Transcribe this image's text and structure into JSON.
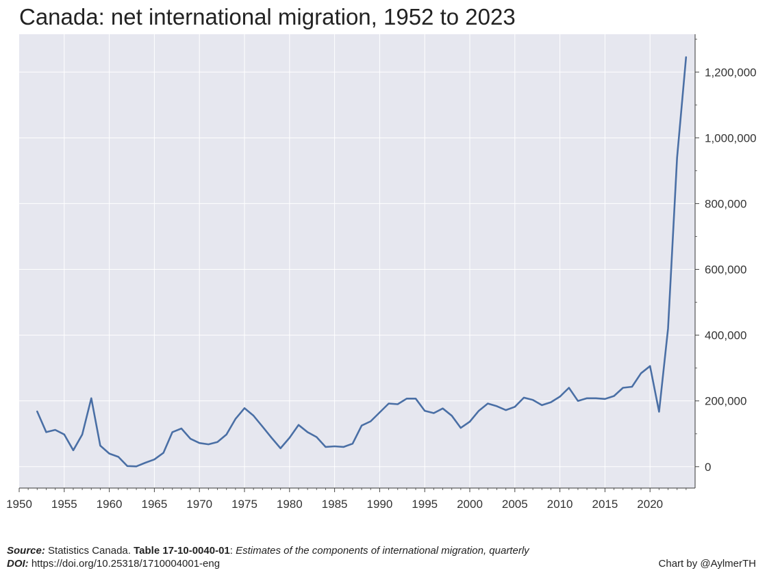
{
  "title": "Canada: net international migration, 1952 to 2023",
  "footer": {
    "source_label": "Source:",
    "source_org": "Statistics Canada.",
    "table_id": "Table 17-10-0040-01",
    "table_sep": ":",
    "table_desc": "Estimates of the components of international migration, quarterly",
    "doi_label": "DOI:",
    "doi_value": "https://doi.org/10.25318/1710004001-eng",
    "credit": "Chart by @AylmerTH"
  },
  "chart_data": {
    "type": "line",
    "title": "Canada: net international migration, 1952 to 2023",
    "xlabel": "",
    "ylabel": "",
    "xlim": [
      1950,
      2025
    ],
    "ylim": [
      -65000,
      1315000
    ],
    "xticks": [
      1950,
      1955,
      1960,
      1965,
      1970,
      1975,
      1980,
      1985,
      1990,
      1995,
      2000,
      2005,
      2010,
      2015,
      2020
    ],
    "yticks": [
      0,
      200000,
      400000,
      600000,
      800000,
      1000000,
      1200000
    ],
    "ytick_labels": [
      "0",
      "200,000",
      "400,000",
      "600,000",
      "800,000",
      "1,000,000",
      "1,200,000"
    ],
    "y_axis_position": "right",
    "grid": true,
    "colors": {
      "plot_bg": "#e6e7ef",
      "grid": "#ffffff",
      "line": "#4a6fa5"
    },
    "series": [
      {
        "x": [
          1952,
          1953,
          1954,
          1955,
          1956,
          1957,
          1958,
          1959,
          1960,
          1961,
          1962,
          1963,
          1964,
          1965,
          1966,
          1967,
          1968,
          1969,
          1970,
          1971,
          1972,
          1973,
          1974,
          1975,
          1976,
          1977,
          1978,
          1979,
          1980,
          1981,
          1982,
          1983,
          1984,
          1985,
          1986,
          1987,
          1988,
          1989,
          1990,
          1991,
          1992,
          1993,
          1994,
          1995,
          1996,
          1997,
          1998,
          1999,
          2000,
          2001,
          2002,
          2003,
          2004,
          2005,
          2006,
          2007,
          2008,
          2009,
          2010,
          2011,
          2012,
          2013,
          2014,
          2015,
          2016,
          2017,
          2018,
          2019,
          2020,
          2021,
          2022,
          2023,
          2024
        ],
        "values": [
          168000,
          105000,
          112000,
          98000,
          50000,
          98000,
          208000,
          64000,
          40000,
          30000,
          2000,
          1000,
          12000,
          22000,
          42000,
          105000,
          116000,
          85000,
          72000,
          68000,
          75000,
          98000,
          145000,
          178000,
          155000,
          122000,
          88000,
          56000,
          88000,
          127000,
          105000,
          90000,
          60000,
          62000,
          60000,
          70000,
          125000,
          138000,
          165000,
          192000,
          190000,
          207000,
          207000,
          170000,
          163000,
          177000,
          155000,
          118000,
          137000,
          170000,
          192000,
          184000,
          172000,
          182000,
          210000,
          203000,
          187000,
          196000,
          213000,
          240000,
          200000,
          208000,
          208000,
          206000,
          215000,
          240000,
          243000,
          284000,
          306000,
          167000,
          420000,
          940000,
          1245000
        ]
      }
    ]
  }
}
